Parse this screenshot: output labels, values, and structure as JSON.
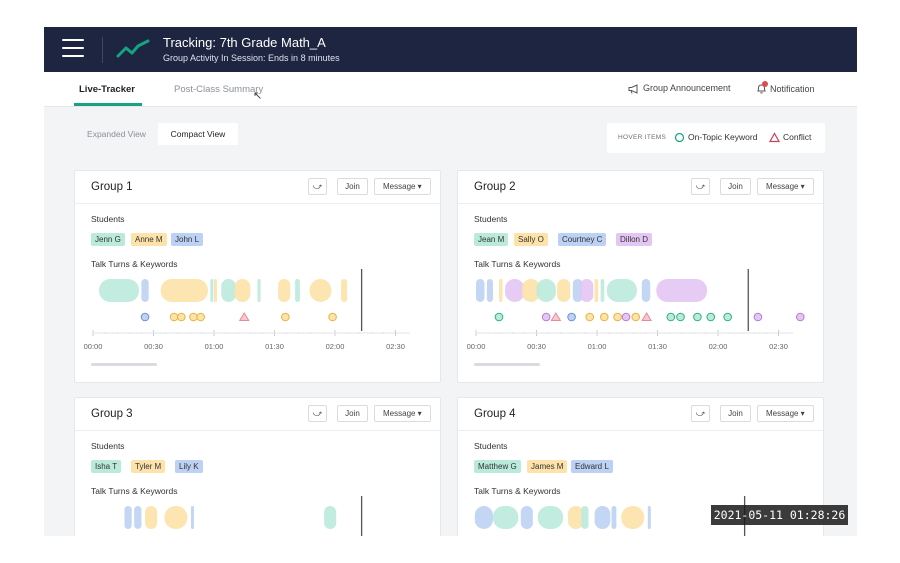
{
  "header": {
    "title": "Tracking: 7th Grade Math_A",
    "subtitle": "Group Activity In Session: Ends in 8 minutes"
  },
  "tabs": [
    {
      "label": "Live-Tracker",
      "active": true
    },
    {
      "label": "Post-Class Summary",
      "active": false
    }
  ],
  "actions": {
    "announcement_label": "Group Announcement",
    "notification_label": "Notification"
  },
  "view_toggle": {
    "expanded_label": "Expanded View",
    "compact_label": "Compact View",
    "selected": "Compact View"
  },
  "hover_items": {
    "label": "HOVER ITEMS",
    "on_topic_label": "On-Topic Keyword",
    "conflict_label": "Conflict"
  },
  "colors": {
    "accent": "#15a383",
    "topbar": "#1d2540",
    "green": "#baeadb",
    "yellow": "#fde2aa",
    "blue": "#bcd1f3",
    "purple": "#e3c6f3",
    "conflict": "#e48a9a",
    "notification_dot": "#e04a4a"
  },
  "common": {
    "students_label": "Students",
    "talk_label": "Talk Turns  & Keywords",
    "join_label": "Join",
    "message_label": "Message ▾",
    "time_ticks": [
      "00:00",
      "00:30",
      "01:00",
      "01:30",
      "02:00",
      "02:30"
    ]
  },
  "groups": [
    {
      "name": "Group 1",
      "students": [
        {
          "name": "Jenn G",
          "color": "green"
        },
        {
          "name": "Anne M",
          "color": "yellow"
        },
        {
          "name": "John L",
          "color": "blue"
        }
      ],
      "talk_turns": [
        {
          "start": 0.05,
          "end": 0.38,
          "color": "green"
        },
        {
          "start": 0.4,
          "end": 0.46,
          "color": "blue"
        },
        {
          "start": 0.56,
          "end": 0.95,
          "color": "yellow"
        },
        {
          "start": 0.97,
          "end": 0.99,
          "color": "green"
        },
        {
          "start": 1.0,
          "end": 1.02,
          "color": "yellow"
        },
        {
          "start": 1.06,
          "end": 1.18,
          "color": "green"
        },
        {
          "start": 1.17,
          "end": 1.3,
          "color": "yellow"
        },
        {
          "start": 1.36,
          "end": 1.38,
          "color": "green"
        },
        {
          "start": 1.53,
          "end": 1.63,
          "color": "yellow"
        },
        {
          "start": 1.67,
          "end": 1.71,
          "color": "green"
        },
        {
          "start": 1.79,
          "end": 1.97,
          "color": "yellow"
        },
        {
          "start": 2.05,
          "end": 2.1,
          "color": "yellow"
        }
      ],
      "keywords": [
        {
          "t": 0.43,
          "type": "blue"
        },
        {
          "t": 0.67,
          "type": "yellow"
        },
        {
          "t": 0.73,
          "type": "yellow"
        },
        {
          "t": 0.83,
          "type": "yellow"
        },
        {
          "t": 0.89,
          "type": "yellow"
        },
        {
          "t": 1.25,
          "type": "conflict"
        },
        {
          "t": 1.59,
          "type": "yellow"
        },
        {
          "t": 1.98,
          "type": "yellow"
        }
      ],
      "now": 2.22
    },
    {
      "name": "Group 2",
      "students": [
        {
          "name": "Jean M",
          "color": "green"
        },
        {
          "name": "Sally O",
          "color": "yellow"
        },
        {
          "name": "Courtney C",
          "color": "blue"
        },
        {
          "name": "Dillon D",
          "color": "purple"
        }
      ],
      "talk_turns": [
        {
          "start": 0.0,
          "end": 0.07,
          "color": "blue"
        },
        {
          "start": 0.09,
          "end": 0.14,
          "color": "blue"
        },
        {
          "start": 0.19,
          "end": 0.22,
          "color": "yellow"
        },
        {
          "start": 0.24,
          "end": 0.4,
          "color": "purple"
        },
        {
          "start": 0.38,
          "end": 0.53,
          "color": "yellow"
        },
        {
          "start": 0.5,
          "end": 0.66,
          "color": "green"
        },
        {
          "start": 0.67,
          "end": 0.78,
          "color": "yellow"
        },
        {
          "start": 0.8,
          "end": 0.88,
          "color": "blue"
        },
        {
          "start": 0.86,
          "end": 0.97,
          "color": "purple"
        },
        {
          "start": 0.98,
          "end": 1.01,
          "color": "yellow"
        },
        {
          "start": 1.03,
          "end": 1.06,
          "color": "green"
        },
        {
          "start": 1.08,
          "end": 1.33,
          "color": "green"
        },
        {
          "start": 1.37,
          "end": 1.44,
          "color": "blue"
        },
        {
          "start": 1.49,
          "end": 1.91,
          "color": "purple"
        }
      ],
      "keywords": [
        {
          "t": 0.19,
          "type": "green"
        },
        {
          "t": 0.58,
          "type": "purple"
        },
        {
          "t": 0.66,
          "type": "conflict"
        },
        {
          "t": 0.79,
          "type": "blue"
        },
        {
          "t": 0.94,
          "type": "yellow"
        },
        {
          "t": 1.06,
          "type": "yellow"
        },
        {
          "t": 1.17,
          "type": "yellow"
        },
        {
          "t": 1.24,
          "type": "purple"
        },
        {
          "t": 1.32,
          "type": "yellow"
        },
        {
          "t": 1.41,
          "type": "conflict"
        },
        {
          "t": 1.61,
          "type": "green"
        },
        {
          "t": 1.69,
          "type": "green"
        },
        {
          "t": 1.83,
          "type": "green"
        },
        {
          "t": 1.94,
          "type": "green"
        },
        {
          "t": 2.08,
          "type": "green"
        },
        {
          "t": 2.33,
          "type": "purple"
        },
        {
          "t": 2.68,
          "type": "purple"
        }
      ],
      "now": 2.25
    },
    {
      "name": "Group 3",
      "students": [
        {
          "name": "Isha T",
          "color": "green"
        },
        {
          "name": "Tyler M",
          "color": "yellow"
        },
        {
          "name": "Lily K",
          "color": "blue"
        }
      ],
      "talk_turns": [
        {
          "start": 0.26,
          "end": 0.32,
          "color": "blue"
        },
        {
          "start": 0.34,
          "end": 0.4,
          "color": "blue"
        },
        {
          "start": 0.43,
          "end": 0.53,
          "color": "yellow"
        },
        {
          "start": 0.59,
          "end": 0.78,
          "color": "yellow"
        },
        {
          "start": 0.81,
          "end": 0.83,
          "color": "blue"
        },
        {
          "start": 1.91,
          "end": 2.01,
          "color": "green"
        }
      ],
      "keywords": [],
      "now": 2.22
    },
    {
      "name": "Group 4",
      "students": [
        {
          "name": "Matthew G",
          "color": "green"
        },
        {
          "name": "James M",
          "color": "yellow"
        },
        {
          "name": "Edward L",
          "color": "blue"
        }
      ],
      "talk_turns": [
        {
          "start": -0.01,
          "end": 0.14,
          "color": "blue"
        },
        {
          "start": 0.14,
          "end": 0.35,
          "color": "green"
        },
        {
          "start": 0.37,
          "end": 0.47,
          "color": "blue"
        },
        {
          "start": 0.51,
          "end": 0.72,
          "color": "green"
        },
        {
          "start": 0.76,
          "end": 0.89,
          "color": "yellow"
        },
        {
          "start": 0.87,
          "end": 0.93,
          "color": "green"
        },
        {
          "start": 0.98,
          "end": 1.11,
          "color": "blue"
        },
        {
          "start": 1.12,
          "end": 1.16,
          "color": "blue"
        },
        {
          "start": 1.2,
          "end": 1.39,
          "color": "yellow"
        },
        {
          "start": 1.42,
          "end": 1.44,
          "color": "blue"
        }
      ],
      "keywords": [],
      "now": 2.22
    }
  ],
  "timestamp": "2021-05-11  01:28:26"
}
